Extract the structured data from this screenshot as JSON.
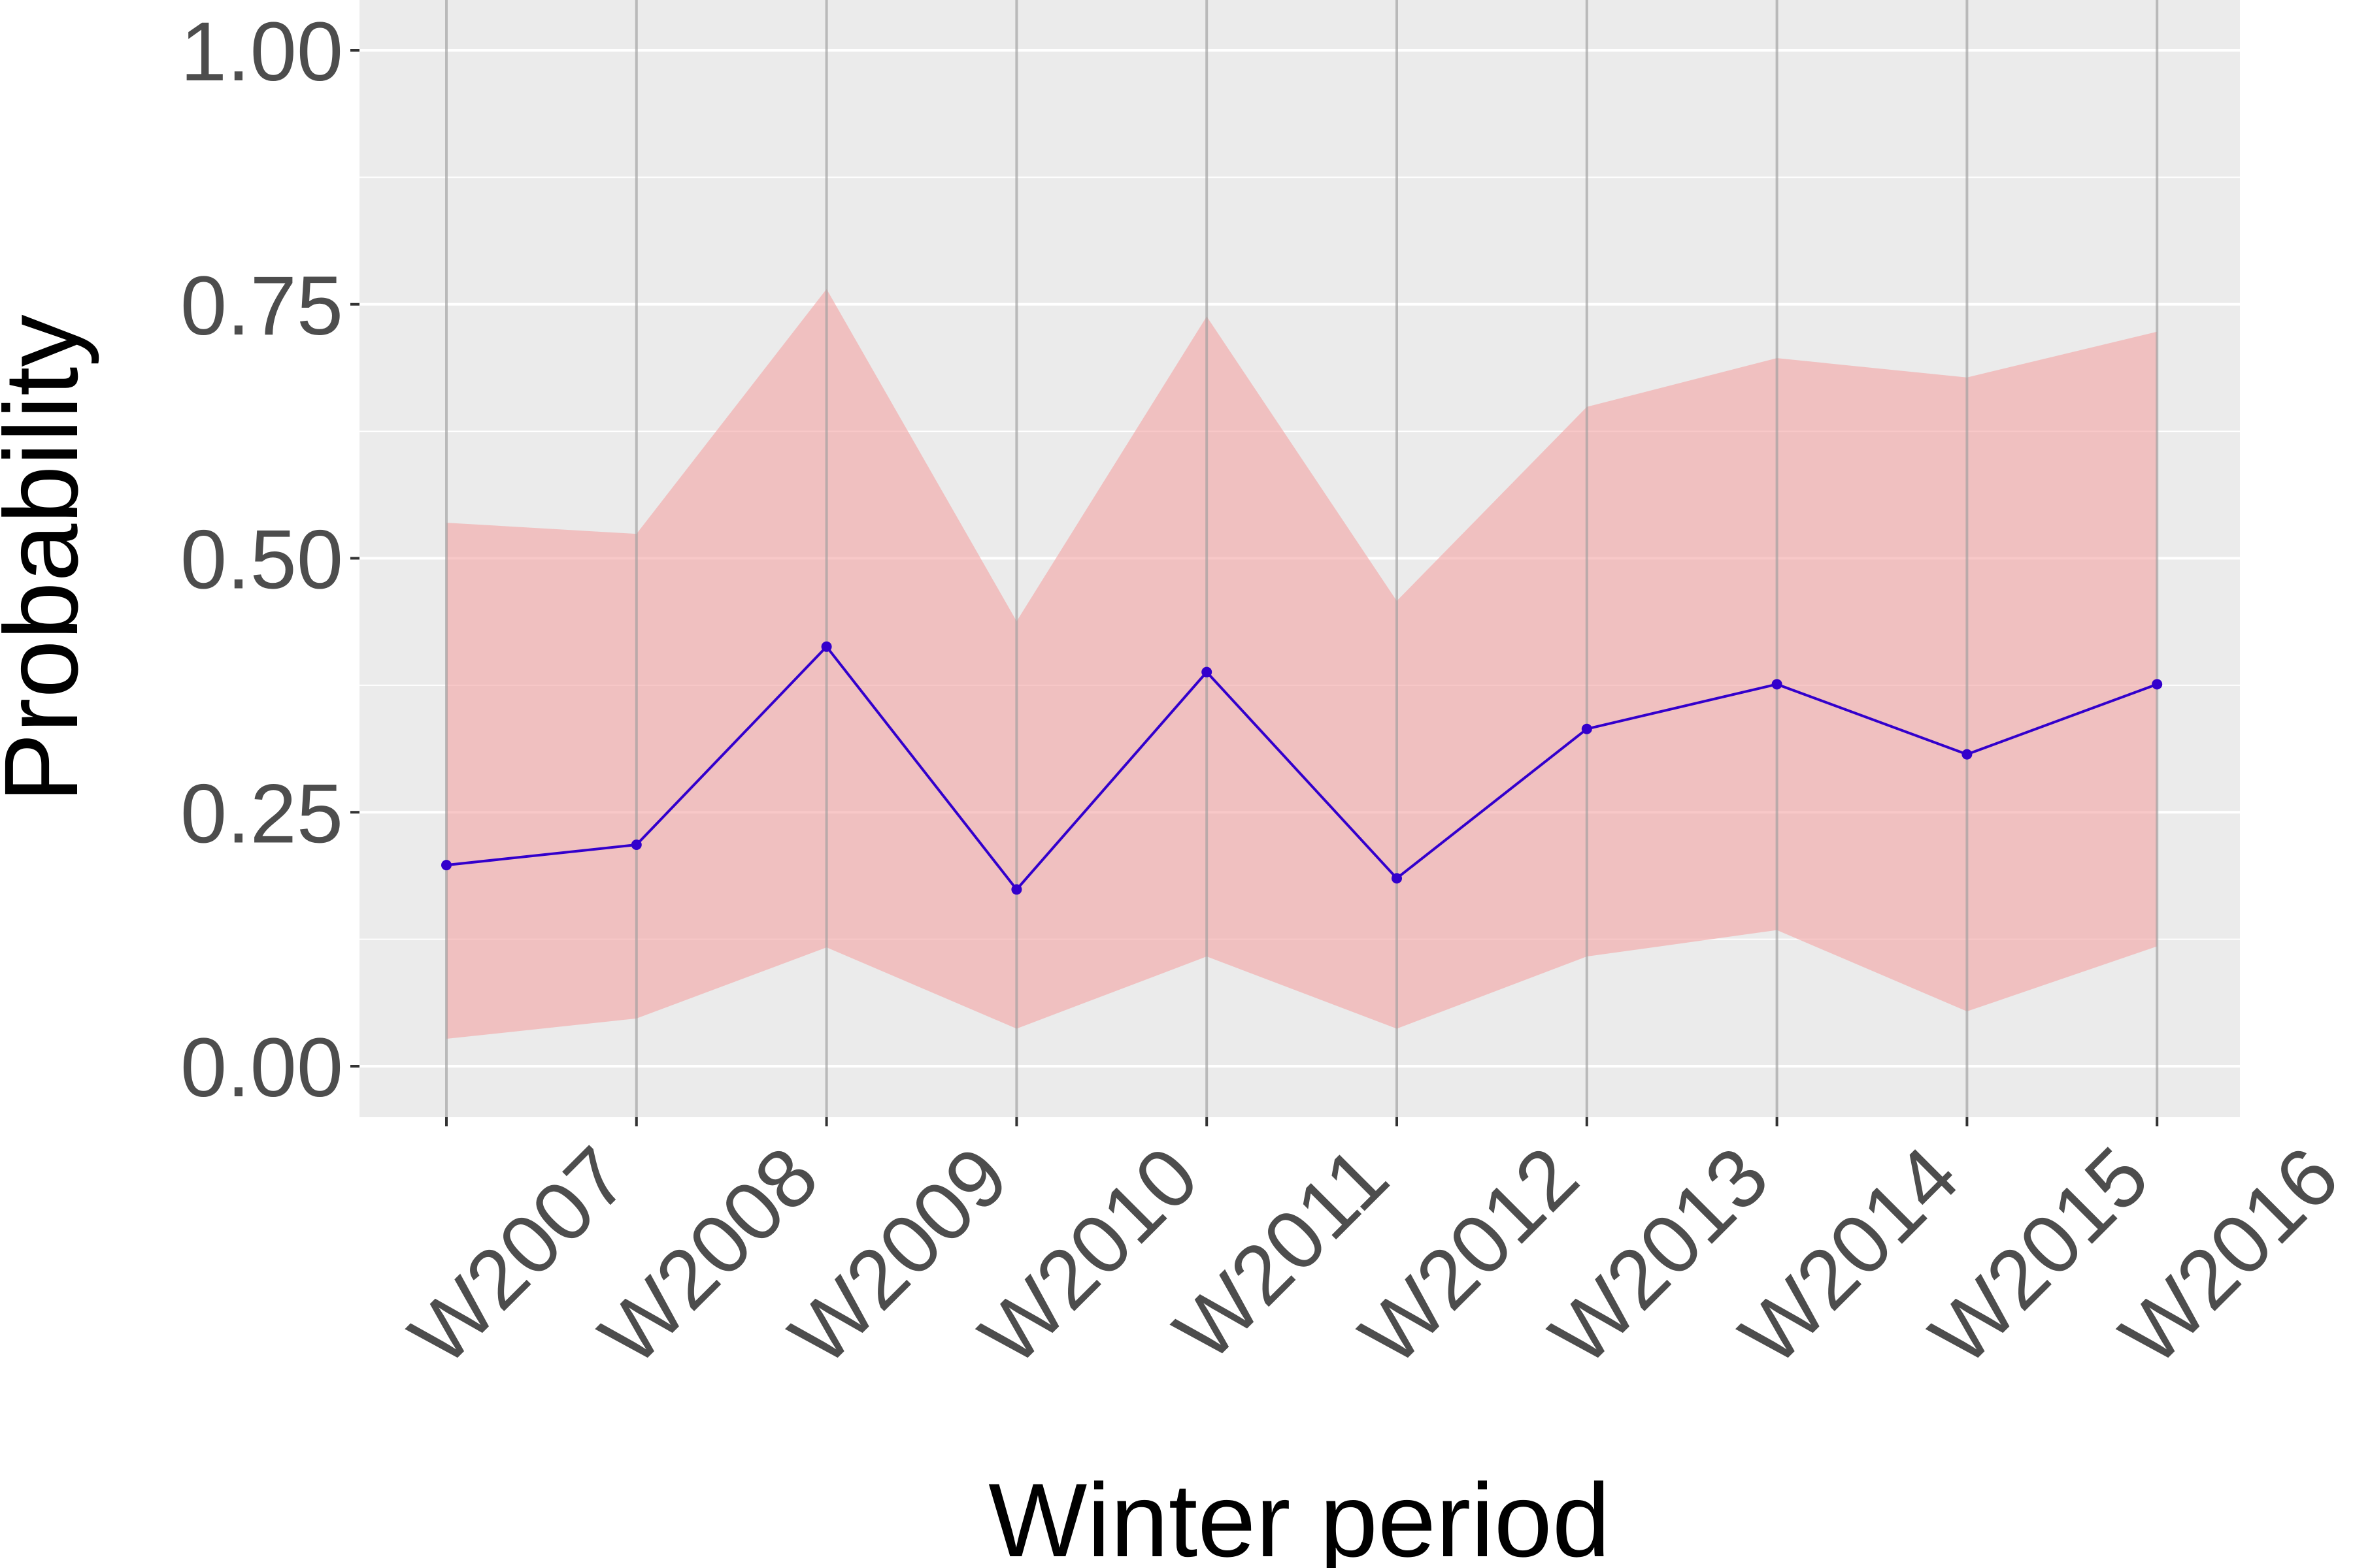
{
  "chart_data": {
    "type": "line",
    "xlabel": "Winter period",
    "ylabel": "Probability",
    "categories": [
      "W2007",
      "W2008",
      "W2009",
      "W2010",
      "W2011",
      "W2012",
      "W2013",
      "W2014",
      "W2015",
      "W2016"
    ],
    "series": [
      {
        "values": [
          0.198,
          0.218,
          0.413,
          0.174,
          0.388,
          0.185,
          0.332,
          0.376,
          0.307,
          0.376
        ],
        "lower": [
          0.027,
          0.047,
          0.117,
          0.037,
          0.108,
          0.037,
          0.108,
          0.134,
          0.054,
          0.118
        ],
        "upper": [
          0.535,
          0.524,
          0.765,
          0.438,
          0.738,
          0.458,
          0.649,
          0.697,
          0.678,
          0.723
        ]
      }
    ],
    "ylim": [
      -0.05,
      1.05
    ],
    "yticks": [
      "0.00",
      "0.25",
      "0.50",
      "0.75",
      "1.00"
    ],
    "grid": true,
    "colors": {
      "panel": "#ebebeb",
      "gridline": "#ffffff",
      "vline": "#bdbdbd",
      "band": "#f4a7a7",
      "line": "#3300cc"
    }
  }
}
